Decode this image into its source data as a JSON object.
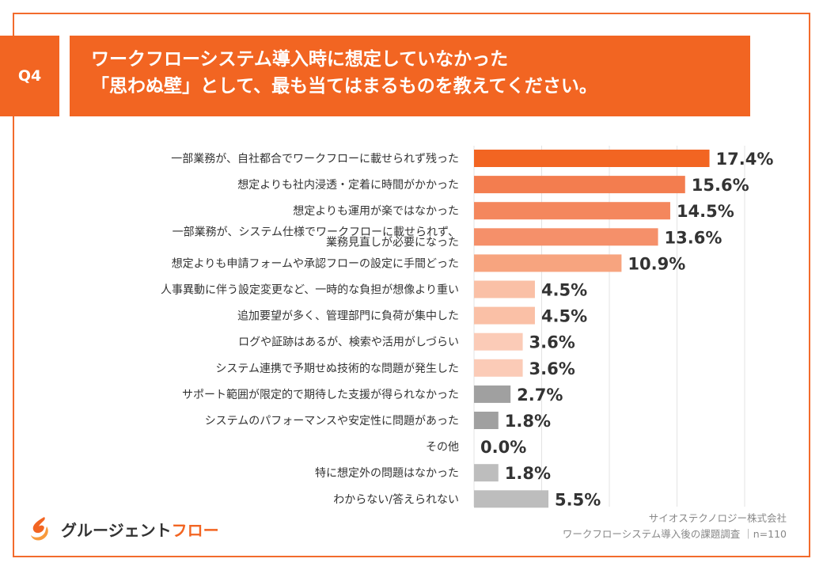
{
  "question_label": "Q4",
  "title": {
    "line1": "ワークフローシステム導入時に想定していなかった",
    "line2": "「思わぬ壁」として、最も当てはまるものを教えてください。"
  },
  "colors": {
    "accent": "#f26522",
    "frame": "#f26b2c",
    "bar_gray": "#a0a0a0",
    "bar_light_gray": "#bdbdbd"
  },
  "chart_data": {
    "type": "bar",
    "orientation": "horizontal",
    "value_unit": "%",
    "xlim": [
      0,
      20
    ],
    "grid": true,
    "categories": [
      "一部業務が、自社都合でワークフローに載せられず残った",
      [
        "一部業務が、システム仕様でワークフローに載せられず、",
        "業務見直しが必要になった"
      ],
      "想定よりも社内浸透・定着に時間がかかった",
      "想定よりも運用が楽ではなかった",
      "想定よりも申請フォームや承認フローの設定に手間どった",
      "人事異動に伴う設定変更など、一時的な負担が想像より重い",
      "追加要望が多く、管理部門に負荷が集中した",
      "ログや証跡はあるが、検索や活用がしづらい",
      "システム連携で予期せぬ技術的な問題が発生した",
      "サポート範囲が限定的で期待した支援が得られなかった",
      "システムのパフォーマンスや安定性に問題があった",
      "その他",
      "特に想定外の問題はなかった",
      "わからない/答えられない"
    ],
    "display_order": [
      0,
      2,
      3,
      1,
      4,
      5,
      6,
      7,
      8,
      9,
      10,
      11,
      12,
      13
    ],
    "values": [
      17.4,
      13.6,
      15.6,
      14.5,
      10.9,
      4.5,
      4.5,
      3.6,
      3.6,
      2.7,
      1.8,
      0.0,
      1.8,
      5.5
    ],
    "value_labels": [
      "17.4%",
      "13.6%",
      "15.6%",
      "14.5%",
      "10.9%",
      "4.5%",
      "4.5%",
      "3.6%",
      "3.6%",
      "2.7%",
      "1.8%",
      "0.0%",
      "1.8%",
      "5.5%"
    ],
    "bar_colors": [
      "#f26522",
      "#f5906a",
      "#f37d4f",
      "#f4875d",
      "#f7a47f",
      "#fac0a6",
      "#fac0a6",
      "#fbcbb7",
      "#fbcbb7",
      "#a0a0a0",
      "#a0a0a0",
      "#a0a0a0",
      "#bdbdbd",
      "#bdbdbd"
    ]
  },
  "logo": {
    "text_main": "グルージェント",
    "text_accent": "フロー",
    "icon": "flame-logo-icon"
  },
  "source": {
    "line1": "サイオステクノロジー株式会社",
    "line2": "ワークフローシステム導入後の課題調査 ｜n=110"
  }
}
